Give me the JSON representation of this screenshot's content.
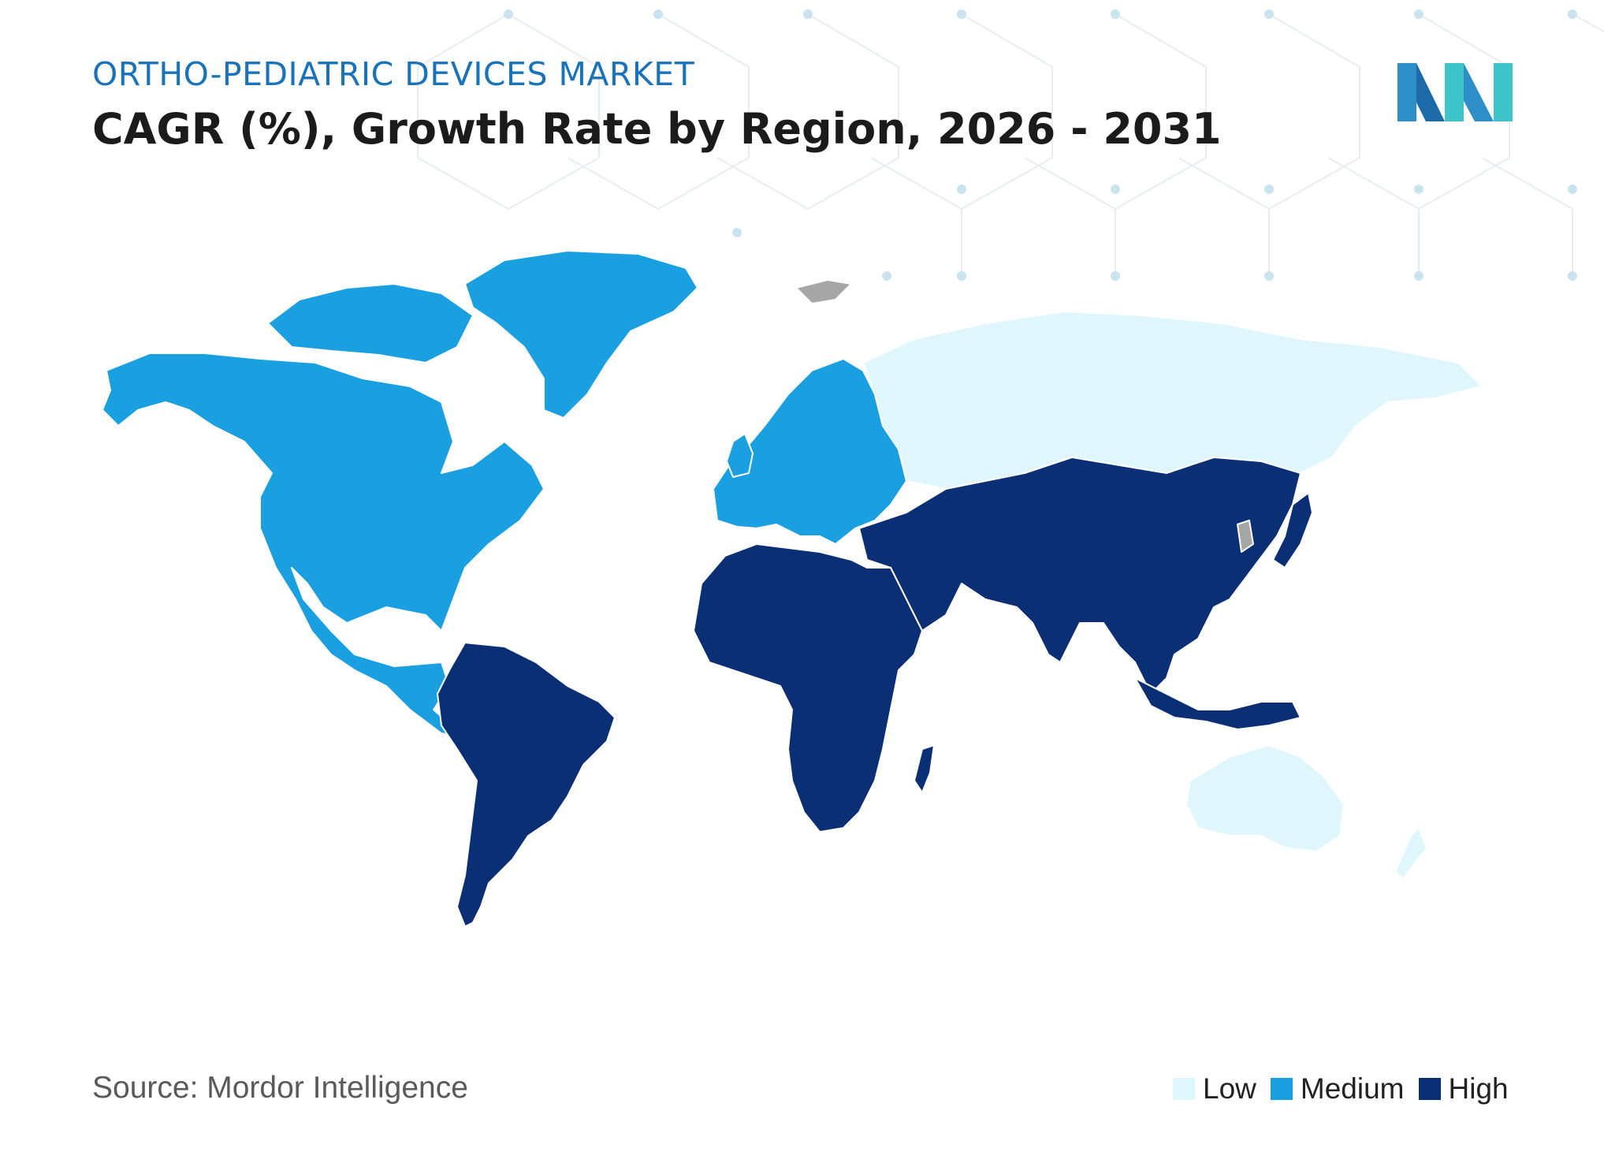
{
  "header": {
    "kicker": "ORTHO-PEDIATRIC DEVICES MARKET",
    "title": "CAGR (%), Growth Rate by Region, 2026 - 2031"
  },
  "source": "Source: Mordor Intelligence",
  "legend": [
    {
      "label": "Low",
      "color": "#e0f6fd"
    },
    {
      "label": "Medium",
      "color": "#1a9fe0"
    },
    {
      "label": "High",
      "color": "#0b2f74"
    }
  ],
  "map": {
    "regions": [
      {
        "name": "North America",
        "level": "Medium"
      },
      {
        "name": "Europe",
        "level": "Medium"
      },
      {
        "name": "Asia-Pacific (Russia, Australia)",
        "level": "Low"
      },
      {
        "name": "Asia",
        "level": "High"
      },
      {
        "name": "Middle East and Africa",
        "level": "High"
      },
      {
        "name": "South America",
        "level": "High"
      }
    ],
    "no_data_color": "#a6a6a6"
  },
  "logo": {
    "icon": "mordor-intelligence-logo"
  }
}
